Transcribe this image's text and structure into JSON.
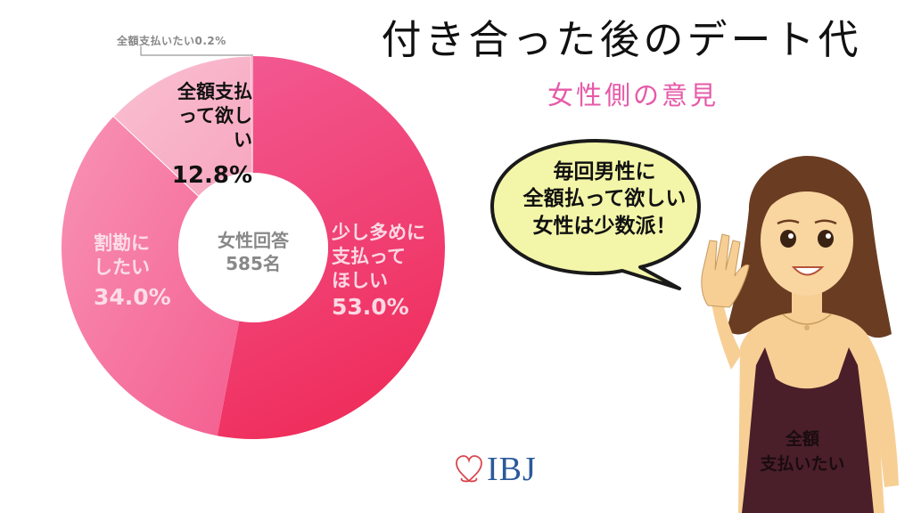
{
  "header": {
    "title": "付き合った後のデート代",
    "subtitle": "女性側の意見"
  },
  "chart_data": {
    "type": "pie",
    "title": "付き合った後のデート代",
    "subtitle": "女性側の意見",
    "center_label": [
      "女性回答",
      "585名"
    ],
    "respondents": 585,
    "donut": true,
    "start_angle": "12 o'clock, clockwise",
    "categories": [
      "少し多めに支払ってほしい",
      "割勘にしたい",
      "全額支払って欲しい",
      "全額支払いたい"
    ],
    "values": [
      53.0,
      34.0,
      12.8,
      0.2
    ],
    "unit": "%",
    "colors": [
      "#f0396a",
      "#f5699a",
      "#f9aec5",
      "#f9aec5"
    ],
    "slice_labels": [
      {
        "lines": [
          "少し多めに",
          "支払って",
          "ほしい"
        ],
        "value": "53.0%",
        "text_color": "#ffffff"
      },
      {
        "lines": [
          "割勘に",
          "したい"
        ],
        "value": "34.0%",
        "text_color": "#ffffff"
      },
      {
        "lines": [
          "全額支払",
          "って欲しい"
        ],
        "value": "12.8%",
        "text_color": "#111111"
      },
      {
        "lines": [
          "全額支払いたい0.2%"
        ],
        "value": "0.2%",
        "text_color": "#888888",
        "callout": true
      }
    ]
  },
  "callout": {
    "bubble_lines": [
      "毎回男性に",
      "全額払って欲しい",
      "女性は少数派！"
    ],
    "bubble_color": "#f3f5a8"
  },
  "character": {
    "dress_text_lines": [
      "全額",
      "支払いたい"
    ]
  },
  "logo": {
    "text": "IBJ",
    "heart_color": "#d9474f",
    "text_color": "#2a5a9a"
  },
  "colors": {
    "title": "#111111",
    "subtitle": "#e65aa8"
  }
}
